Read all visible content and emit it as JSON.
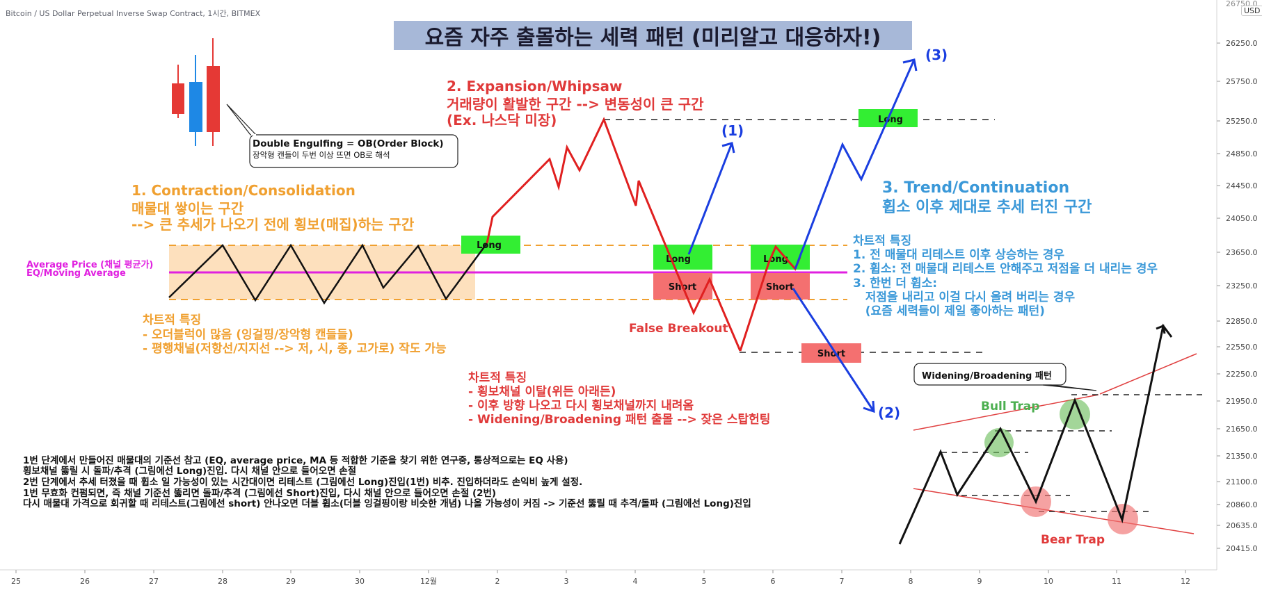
{
  "header": {
    "symbol": "Bitcoin / US Dollar Perpetual Inverse Swap Contract, 1시간, BITMEX",
    "currency": "USD"
  },
  "title": "요즘 자주 출몰하는 세력 패턴 (미리알고 대응하자!)",
  "annotations": {
    "phase1": {
      "heading": "1. Contraction/Consolidation",
      "line1": "매물대 쌓이는 구간",
      "line2": "--> 큰 추세가 나오기 전에 횡보(매집)하는 구간",
      "features_title": "차트적 특징",
      "features": [
        "- 오더블럭이 많음 (잉걸핑/장악형 캔들들)",
        "- 평행채널(저항선/지지선 --> 저, 시, 종, 고가로) 작도 가능"
      ]
    },
    "phase2": {
      "heading": "2. Expansion/Whipsaw",
      "line1": "거래량이 활발한 구간 --> 변동성이 큰 구간",
      "line2": "(Ex. 나스닥 미장)",
      "features_title": "차트적 특징",
      "features": [
        "- 횡보채널 이탈(위든 아래든)",
        "- 이후 방향 나오고 다시 횡보채널까지 내려옴",
        "- Widening/Broadening 패턴 출몰 --> 잦은 스탑헌팅"
      ]
    },
    "phase3": {
      "heading": "3. Trend/Continuation",
      "line1": "휩소 이후 제대로 추세 터진 구간",
      "features_title": "차트적 특징",
      "features": [
        "1. 전 매물대 리테스트 이후 상승하는 경우",
        "2. 휩소: 전 매물대 리테스트 안해주고 저점을 더 내리는 경우",
        "3. 한번 더 휩소:",
        "   저점을 내리고 이걸 다시 올려 버리는 경우",
        "   (요즘 세력들이 제일 좋아하는 패턴)"
      ]
    },
    "double_engulfing": {
      "line1": "Double Engulfing = OB(Order Block)",
      "line2": "장악형 캔들이 두번 이상 뜨면 OB로 해석"
    },
    "average_price": {
      "line1": "Average Price (채널 평균가)",
      "line2": "EQ/Moving Average"
    },
    "false_breakout": "False Breakout",
    "widening_label": "Widening/Broadening 패턴",
    "bull_trap": "Bull Trap",
    "bear_trap": "Bear Trap",
    "notes": [
      "1번 단계에서 만들어진 매물대의 기준선 참고 (EQ, average price, MA 등 적합한 기준을 찾기 위한 연구중, 통상적으로는 EQ 사용)",
      "횡보채널 뚫릴 시 돌파/추격 (그림에선 Long)진입. 다시 채널 안으로 들어오면 손절",
      "2번 단계에서 추세 터졌을 때 휩소 일 가능성이 있는 시간대이면 리테스트 (그림에선 Long)진입(1번) 비추. 진입하더라도 손익비 높게 설정.",
      "1번 무효화 컨펌되면, 즉 채널 기준선 뚫리면 돌파/추격 (그림에선 Short)진입, 다시 채널 안으로 들어오면 손절 (2번)",
      "다시 매물대 가격으로 회귀할 때 리테스트(그림에선 short) 안나오면 더블 휩소(더블 잉걸핑이랑 비슷한 개념) 나올 가능성이 커짐 -> 기준선 뚫릴 때 추격/돌파 (그림에선 Long)진입"
    ]
  },
  "markers": {
    "long": "Long",
    "short": "Short",
    "path1": "(1)",
    "path2": "(2)",
    "path3": "(3)"
  },
  "colors": {
    "orange": "#f0a030",
    "red": "#e03a3a",
    "blue": "#2060d8",
    "light_blue": "#3a98d8",
    "magenta": "#e020e0",
    "green_box": "#33ee33",
    "red_box": "#f47070",
    "channel_fill": "#fde0bd",
    "title_bg": "#a7b8d8"
  },
  "chart_data": {
    "type": "line",
    "y_axis": {
      "side": "right",
      "ticks": [
        26250.0,
        25750.0,
        25250.0,
        24850.0,
        24450.0,
        24050.0,
        23650.0,
        23250.0,
        22850.0,
        22550.0,
        22250.0,
        21950.0,
        21650.0,
        21350.0,
        21100.0,
        20860.0,
        20635.0,
        20415.0
      ],
      "top_partial": "26750.0"
    },
    "x_axis": {
      "ticks": [
        "25",
        "26",
        "27",
        "28",
        "29",
        "30",
        "12월",
        "2",
        "3",
        "4",
        "5",
        "6",
        "7",
        "8",
        "9",
        "10",
        "11",
        "12"
      ]
    },
    "levels": {
      "channel_top": 23750,
      "equilibrium": 23400,
      "channel_bottom": 23100,
      "high_level": 25300,
      "low_level": 22500
    },
    "series": [
      {
        "color": "black",
        "x": [
          "27",
          "28",
          "28",
          "29",
          "29",
          "30",
          "30",
          "12월",
          "12월",
          "2"
        ],
        "y": [
          23150,
          23800,
          23100,
          23750,
          23050,
          23750,
          23200,
          23750,
          23100,
          23800
        ]
      },
      {
        "color": "red",
        "x": [
          "2",
          "3",
          "3",
          "3",
          "4",
          "4",
          "5",
          "5",
          "6"
        ],
        "y": [
          24050,
          24850,
          24450,
          25250,
          24450,
          24400,
          22700,
          23400,
          22500
        ]
      },
      {
        "color": "blue",
        "x": [
          "5",
          "5"
        ],
        "y": [
          23300,
          25000
        ]
      },
      {
        "color": "red",
        "x": [
          "6",
          "6",
          "6"
        ],
        "y": [
          22500,
          23850,
          23500
        ]
      },
      {
        "color": "blue",
        "x": [
          "6",
          "7",
          "7",
          "8"
        ],
        "y": [
          23500,
          25000,
          24500,
          26100
        ]
      },
      {
        "color": "blue",
        "x": [
          "6",
          "8"
        ],
        "y": [
          23200,
          21750
        ]
      },
      {
        "color": "black",
        "x": [
          "8",
          "9",
          "9",
          "10",
          "10",
          "10",
          "11",
          "11",
          "12"
        ],
        "y": [
          20500,
          21400,
          20950,
          21600,
          20850,
          21950,
          20680,
          22700,
          22650
        ]
      }
    ],
    "trade_boxes": [
      "Long",
      "Long",
      "Long",
      "Long",
      "Short",
      "Short",
      "Short"
    ],
    "traps": [
      "Bull Trap",
      "Bull Trap",
      "Bear Trap",
      "Bear Trap"
    ]
  }
}
